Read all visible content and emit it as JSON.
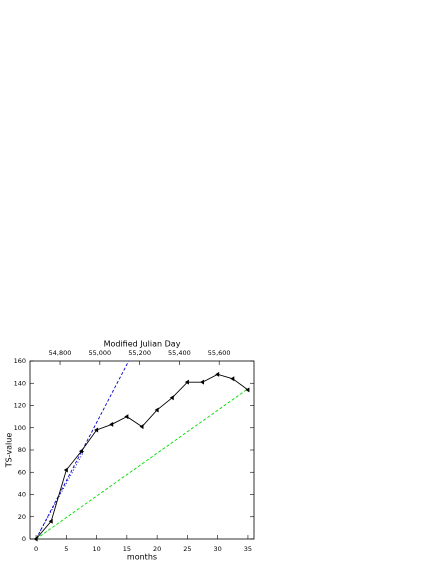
{
  "chart_data": {
    "type": "line",
    "x_label": "months",
    "y_label": "TS-value",
    "x2_label": "Modified Julian Day",
    "xlim": [
      -1,
      36
    ],
    "xticks": [
      0,
      5,
      10,
      15,
      20,
      25,
      30,
      35
    ],
    "ylim": [
      0,
      160
    ],
    "yticks": [
      0,
      20,
      40,
      60,
      80,
      100,
      120,
      140,
      160
    ],
    "x2lim": [
      54649,
      55775
    ],
    "x2ticks": [
      {
        "value": 54800,
        "label": "54,800"
      },
      {
        "value": 55000,
        "label": "55,000"
      },
      {
        "value": 55200,
        "label": "55,200"
      },
      {
        "value": 55400,
        "label": "55,400"
      },
      {
        "value": 55600,
        "label": "55,600"
      }
    ],
    "series": [
      {
        "color": "#0000cc",
        "dash": "3,2",
        "x": [
          0,
          15.3
        ],
        "values": [
          0,
          160
        ]
      },
      {
        "color": "#0000cc",
        "dash": "1,2",
        "x": [
          0,
          8
        ],
        "values": [
          0,
          80
        ]
      },
      {
        "color": "#00dd00",
        "dash": "3,2",
        "x": [
          0,
          35
        ],
        "values": [
          0,
          135
        ]
      },
      {
        "color": "#000000",
        "markers": true,
        "x": [
          0,
          2.5,
          5,
          7.5,
          10,
          12.5,
          15,
          17.5,
          20,
          22.5,
          25,
          27.5,
          30,
          32.5,
          35
        ],
        "values": [
          0,
          16,
          62,
          79,
          98,
          103,
          110,
          101,
          116,
          127,
          141,
          141,
          148,
          144,
          134
        ]
      }
    ]
  }
}
